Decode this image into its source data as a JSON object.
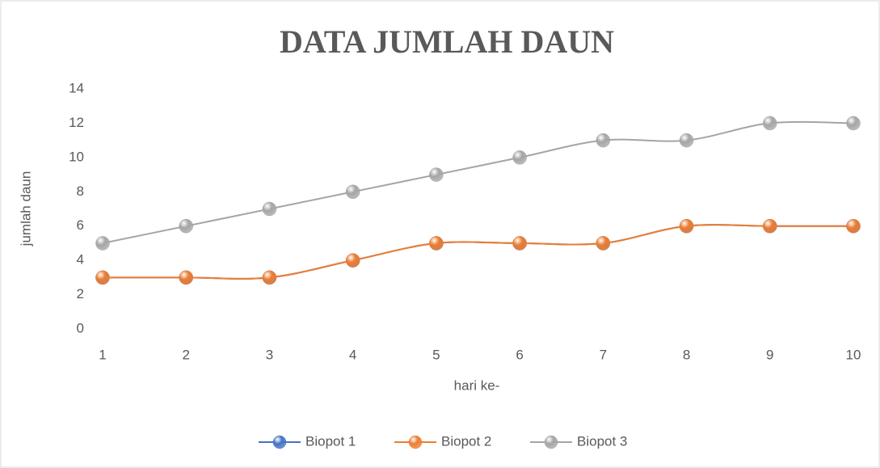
{
  "chart_data": {
    "type": "line",
    "title": "DATA JUMLAH DAUN",
    "x_label": "hari ke-",
    "y_label": "jumlah daun",
    "categories": [
      "1",
      "2",
      "3",
      "4",
      "5",
      "6",
      "7",
      "8",
      "9",
      "10"
    ],
    "series": [
      {
        "name": "Biopot 1",
        "color": "#4472c4",
        "values": [
          3,
          3,
          3,
          4,
          5,
          5,
          5,
          6,
          6,
          6
        ]
      },
      {
        "name": "Biopot 2",
        "color": "#ed7d31",
        "values": [
          3,
          3,
          3,
          4,
          5,
          5,
          5,
          6,
          6,
          6
        ]
      },
      {
        "name": "Biopot 3",
        "color": "#a5a5a5",
        "values": [
          5,
          6,
          7,
          8,
          9,
          10,
          11,
          11,
          12,
          12
        ]
      }
    ],
    "ylim": [
      0,
      14
    ],
    "yticks": [
      0,
      2,
      4,
      6,
      8,
      10,
      12,
      14
    ],
    "grid": false,
    "smooth": true,
    "legend": "bottom"
  }
}
